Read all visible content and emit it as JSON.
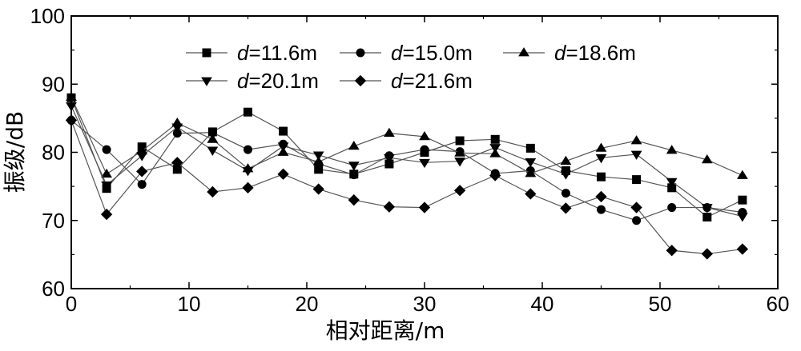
{
  "chart_data": {
    "type": "line",
    "xlabel": "相对距离/m",
    "ylabel": "振级/dB",
    "xlim": [
      0,
      60
    ],
    "ylim": [
      60,
      100
    ],
    "xticks": [
      0,
      10,
      20,
      30,
      40,
      50,
      60
    ],
    "yticks": [
      60,
      70,
      80,
      90,
      100
    ],
    "grid": false,
    "legend_position": "top",
    "line_color": "#555555",
    "marker_color": "#000000",
    "x": [
      0,
      3,
      6,
      9,
      12,
      15,
      18,
      21,
      24,
      27,
      30,
      33,
      36,
      39,
      42,
      45,
      48,
      51,
      54,
      57
    ],
    "series": [
      {
        "name": "d=11.6m",
        "label_var": "d",
        "label_rest": "=11.6m",
        "marker": "square",
        "values": [
          88.0,
          74.7,
          80.8,
          77.5,
          83.0,
          85.9,
          83.1,
          77.5,
          76.8,
          78.3,
          80.0,
          81.7,
          81.9,
          80.6,
          77.3,
          76.4,
          76.0,
          74.8,
          70.5,
          73.0
        ]
      },
      {
        "name": "d=15.0m",
        "label_var": "d",
        "label_rest": "=15.0m",
        "marker": "circle",
        "values": [
          84.7,
          80.4,
          75.3,
          82.8,
          82.9,
          80.4,
          81.2,
          78.3,
          76.7,
          79.5,
          80.4,
          80.1,
          76.9,
          77.3,
          74.0,
          71.6,
          70.0,
          71.9,
          71.9,
          71.2
        ]
      },
      {
        "name": "d=18.6m",
        "label_var": "d",
        "label_rest": "=18.6m",
        "marker": "triangle-up",
        "values": [
          88.1,
          76.8,
          80.2,
          84.3,
          81.9,
          77.6,
          80.0,
          78.6,
          80.9,
          82.8,
          82.3,
          79.9,
          79.8,
          76.9,
          78.7,
          80.6,
          81.7,
          80.3,
          78.9,
          76.6
        ]
      },
      {
        "name": "d=20.1m",
        "label_var": "d",
        "label_rest": "=20.1m",
        "marker": "triangle-down",
        "values": [
          86.8,
          75.2,
          79.5,
          83.7,
          80.3,
          77.3,
          80.9,
          79.6,
          78.1,
          79.2,
          78.5,
          78.7,
          80.7,
          78.6,
          76.8,
          79.2,
          79.7,
          75.7,
          71.9,
          70.6
        ]
      },
      {
        "name": "d=21.6m",
        "label_var": "d",
        "label_rest": "=21.6m",
        "marker": "diamond",
        "values": [
          84.7,
          70.9,
          77.2,
          78.5,
          74.2,
          74.8,
          76.8,
          74.6,
          73.0,
          72.0,
          71.9,
          74.4,
          76.6,
          73.9,
          71.8,
          73.5,
          71.9,
          65.6,
          65.1,
          65.8
        ]
      }
    ]
  }
}
